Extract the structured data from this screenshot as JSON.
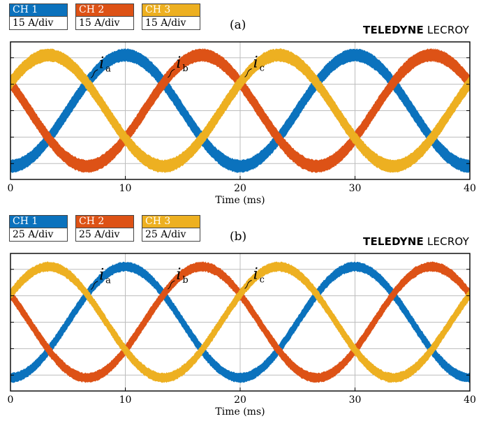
{
  "colors": {
    "ch1": "#0b72bd",
    "ch2": "#dd5216",
    "ch3": "#edb021",
    "grid": "#bdbdbd"
  },
  "brand": {
    "bold": "TELEDYNE",
    "light": " LECROY"
  },
  "panels": [
    {
      "label": "(a)",
      "channels": [
        {
          "name": "CH 1",
          "scale": "15 A/div"
        },
        {
          "name": "CH 2",
          "scale": "15 A/div"
        },
        {
          "name": "CH 3",
          "scale": "15 A/div"
        }
      ]
    },
    {
      "label": "(b)",
      "channels": [
        {
          "name": "CH 1",
          "scale": "25 A/div"
        },
        {
          "name": "CH 2",
          "scale": "25 A/div"
        },
        {
          "name": "CH 3",
          "scale": "25 A/div"
        }
      ]
    }
  ],
  "chart_data": [
    {
      "type": "line",
      "xlabel": "Time (ms)",
      "xlim": [
        0,
        40
      ],
      "xticks": [
        0,
        10,
        20,
        30,
        40
      ],
      "ylim": [
        -2.6,
        2.6
      ],
      "ylabel": "",
      "grid": true,
      "frequency_hz": 50,
      "amplitude_div": 2.1,
      "series": [
        {
          "name": "CH 1",
          "annotation": "i",
          "annotation_sub": "a",
          "phase_deg": 0,
          "annotation_x": 7.0
        },
        {
          "name": "CH 2",
          "annotation": "i",
          "annotation_sub": "b",
          "phase_deg": -120,
          "annotation_x": 13.7
        },
        {
          "name": "CH 3",
          "annotation": "i",
          "annotation_sub": "c",
          "phase_deg": 120,
          "annotation_x": 20.4
        }
      ]
    },
    {
      "type": "line",
      "xlabel": "Time (ms)",
      "xlim": [
        0,
        40
      ],
      "xticks": [
        0,
        10,
        20,
        30,
        40
      ],
      "ylim": [
        -2.6,
        2.6
      ],
      "ylabel": "",
      "grid": true,
      "frequency_hz": 50,
      "amplitude_div": 2.1,
      "series": [
        {
          "name": "CH 1",
          "annotation": "i",
          "annotation_sub": "a",
          "phase_deg": 0,
          "annotation_x": 7.0
        },
        {
          "name": "CH 2",
          "annotation": "i",
          "annotation_sub": "b",
          "phase_deg": -120,
          "annotation_x": 13.7
        },
        {
          "name": "CH 3",
          "annotation": "i",
          "annotation_sub": "c",
          "phase_deg": 120,
          "annotation_x": 20.4
        }
      ]
    }
  ]
}
